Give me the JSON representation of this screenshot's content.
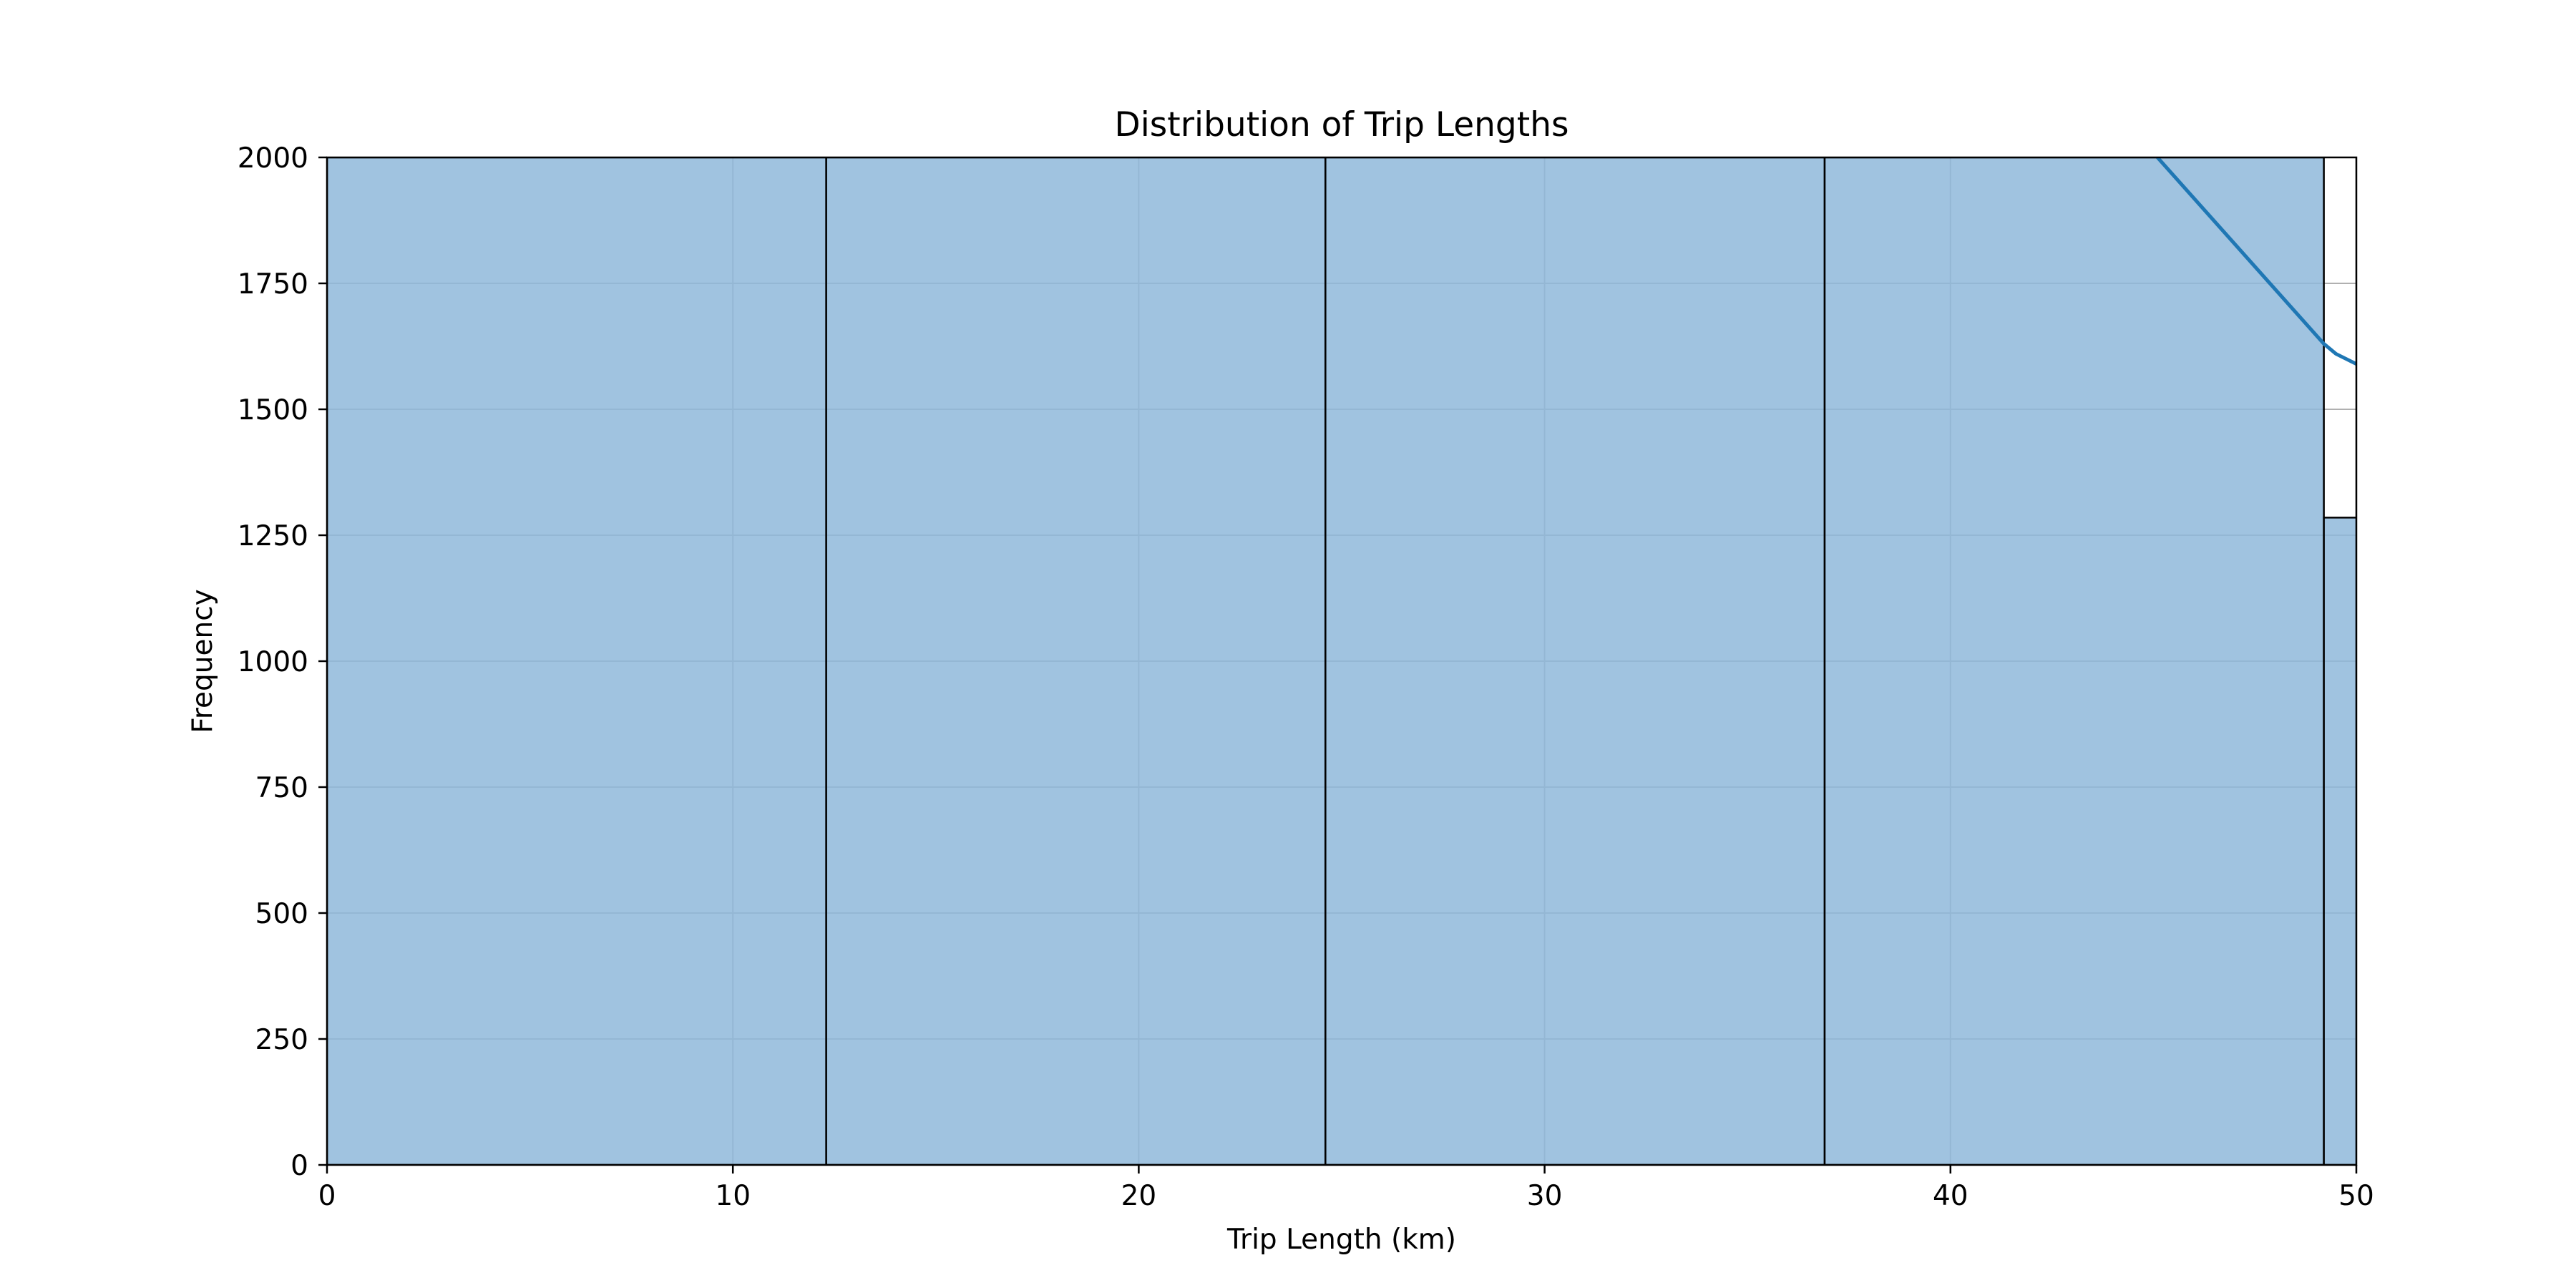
{
  "chart_data": {
    "type": "bar",
    "title": "Distribution of Trip Lengths",
    "xlabel": "Trip Length (km)",
    "ylabel": "Frequency",
    "xlim": [
      0,
      50
    ],
    "ylim": [
      0,
      2000
    ],
    "xticks": [
      0,
      10,
      20,
      30,
      40,
      50
    ],
    "yticks": [
      0,
      250,
      500,
      750,
      1000,
      1250,
      1500,
      1750,
      2000
    ],
    "grid": true,
    "bar_color": "#8fb9da",
    "bar_edge_color": "#000000",
    "line_color": "#1f77b4",
    "bins": [
      {
        "x0": 0.0,
        "x1": 12.3,
        "value": 2000
      },
      {
        "x0": 12.3,
        "x1": 24.6,
        "value": 2000
      },
      {
        "x0": 24.6,
        "x1": 36.9,
        "value": 2000
      },
      {
        "x0": 36.9,
        "x1": 49.2,
        "value": 2000
      },
      {
        "x0": 49.2,
        "x1": 61.5,
        "value": 1285
      }
    ],
    "kde_line": {
      "x": [
        45.1,
        49.2,
        49.5,
        50.0
      ],
      "y": [
        2000,
        1630,
        1610,
        1590
      ]
    }
  }
}
